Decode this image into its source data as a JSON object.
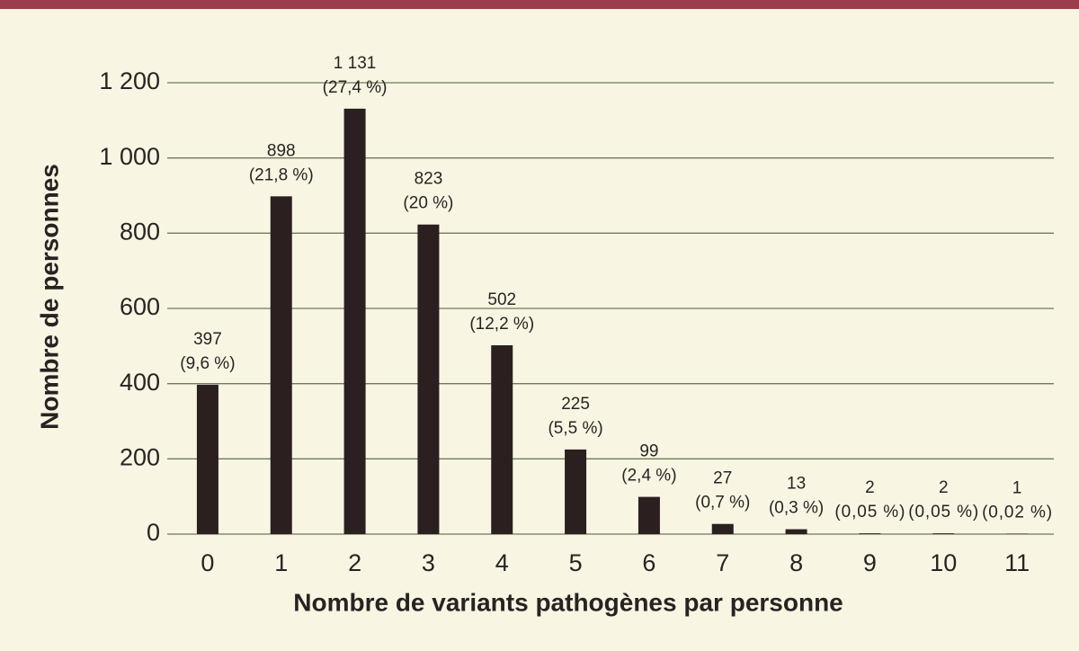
{
  "chart_data": {
    "type": "bar",
    "x_label": "Nombre de variants pathogènes par personne",
    "y_label": "Nombre de personnes",
    "categories": [
      "0",
      "1",
      "2",
      "3",
      "4",
      "5",
      "6",
      "7",
      "8",
      "9",
      "10",
      "11"
    ],
    "values": [
      397,
      898,
      1131,
      823,
      502,
      225,
      99,
      27,
      13,
      2,
      2,
      1
    ],
    "value_labels": [
      "397",
      "898",
      "1 131",
      "823",
      "502",
      "225",
      "99",
      "27",
      "13",
      "2",
      "2",
      "1"
    ],
    "percent_labels": [
      "(9,6 %)",
      "(21,8 %)",
      "(27,4 %)",
      "(20 %)",
      "(12,2 %)",
      "(5,5 %)",
      "(2,4 %)",
      "(0,7 %)",
      "(0,3 %)",
      "(0,05 %)",
      "(0,05 %)",
      "(0,02 %)"
    ],
    "color": "#2b1f1f",
    "ylim": [
      0,
      1200
    ],
    "yticks": [
      0,
      200,
      400,
      600,
      800,
      {
        "value": 1000,
        "label": "1 000"
      },
      {
        "value": 1200,
        "label": "1 200"
      }
    ],
    "grid": true
  }
}
